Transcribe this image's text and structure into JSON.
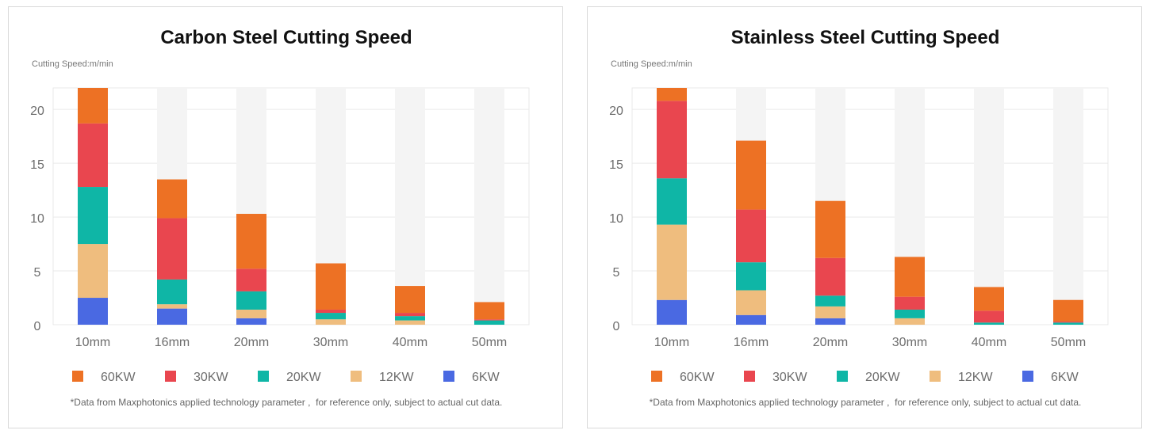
{
  "colors": {
    "60KW": "#ed7124",
    "30KW": "#e9464f",
    "20KW": "#0fb6a6",
    "12KW": "#efbd7e",
    "6KW": "#4a69e2",
    "column_bg": "#f4f4f4",
    "grid": "#e9e9e9",
    "text": "#6d6d6d"
  },
  "chart_data": [
    {
      "type": "bar",
      "stacked": true,
      "title": "Carbon Steel Cutting Speed",
      "ylabel": "Cutting Speed:m/min",
      "categories": [
        "10mm",
        "16mm",
        "20mm",
        "30mm",
        "40mm",
        "50mm"
      ],
      "yticks": [
        0,
        5,
        10,
        15,
        20
      ],
      "ylim": [
        0,
        22
      ],
      "grid": true,
      "legend_position": "bottom",
      "series": [
        {
          "name": "6KW",
          "values": [
            2.5,
            1.5,
            0.6,
            0,
            0,
            0
          ]
        },
        {
          "name": "12KW",
          "values": [
            5,
            0.4,
            0.8,
            0.5,
            0.4,
            0
          ]
        },
        {
          "name": "20KW",
          "values": [
            5.3,
            2.3,
            1.7,
            0.6,
            0.4,
            0.4
          ]
        },
        {
          "name": "30KW",
          "values": [
            5.9,
            5.7,
            2.1,
            0.3,
            0.3,
            0.1
          ]
        },
        {
          "name": "60KW",
          "values": [
            3.6,
            3.6,
            5.1,
            4.3,
            2.5,
            1.6
          ]
        }
      ],
      "footnote": "*Data from Maxphotonics applied technology parameter ,  for reference only, subject to actual cut data."
    },
    {
      "type": "bar",
      "stacked": true,
      "title": "Stainless Steel Cutting Speed",
      "ylabel": "Cutting Speed:m/min",
      "categories": [
        "10mm",
        "16mm",
        "20mm",
        "30mm",
        "40mm",
        "50mm"
      ],
      "yticks": [
        0,
        5,
        10,
        15,
        20
      ],
      "ylim": [
        0,
        22
      ],
      "grid": true,
      "legend_position": "bottom",
      "series": [
        {
          "name": "6KW",
          "values": [
            2.3,
            0.9,
            0.6,
            0,
            0,
            0
          ]
        },
        {
          "name": "12KW",
          "values": [
            7,
            2.3,
            1.1,
            0.6,
            0,
            0
          ]
        },
        {
          "name": "20KW",
          "values": [
            4.3,
            2.6,
            1,
            0.8,
            0.2,
            0.2
          ]
        },
        {
          "name": "30KW",
          "values": [
            7.2,
            4.9,
            3.5,
            1.2,
            1.1,
            0.1
          ]
        },
        {
          "name": "60KW",
          "values": [
            1.5,
            6.4,
            5.3,
            3.7,
            2.2,
            2
          ]
        }
      ],
      "footnote": "*Data from Maxphotonics applied technology parameter ,  for reference only, subject to actual cut data."
    }
  ]
}
